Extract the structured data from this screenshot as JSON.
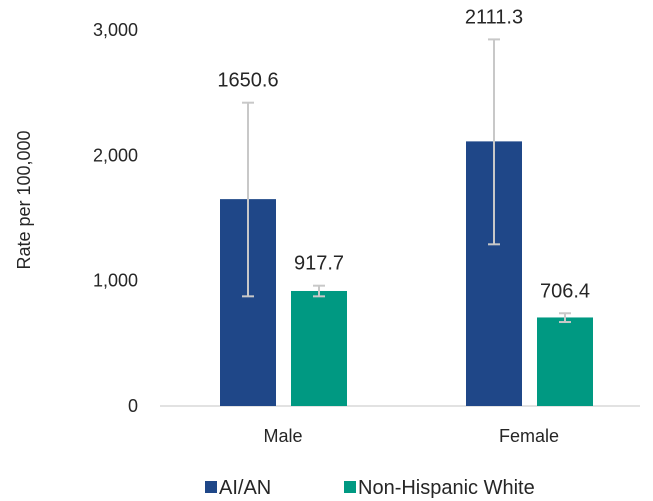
{
  "chart_data": {
    "type": "bar",
    "categories": [
      "Male",
      "Female"
    ],
    "series": [
      {
        "name": "AI/AN",
        "values": [
          1650.6,
          2111.3
        ],
        "labels": [
          "1650.6",
          "2111.3"
        ],
        "error_low": [
          875,
          1290
        ],
        "error_high": [
          2420,
          2925
        ],
        "color": "#1f4788"
      },
      {
        "name": "Non-Hispanic White",
        "values": [
          917.7,
          706.4
        ],
        "labels": [
          "917.7",
          "706.4"
        ],
        "error_low": [
          875,
          670
        ],
        "error_high": [
          960,
          740
        ],
        "color": "#009982"
      }
    ],
    "ylabel": "Rate per 100,000",
    "yticks": [
      "0",
      "1,000",
      "2,000",
      "3,000"
    ],
    "ytick_values": [
      0,
      1000,
      2000,
      3000
    ],
    "ylim": [
      0,
      3000
    ],
    "grid": false,
    "legend_position": "bottom"
  },
  "colors": {
    "axis": "#d9d9d9",
    "errorbar": "#c8c8c8",
    "text": "#262626"
  }
}
